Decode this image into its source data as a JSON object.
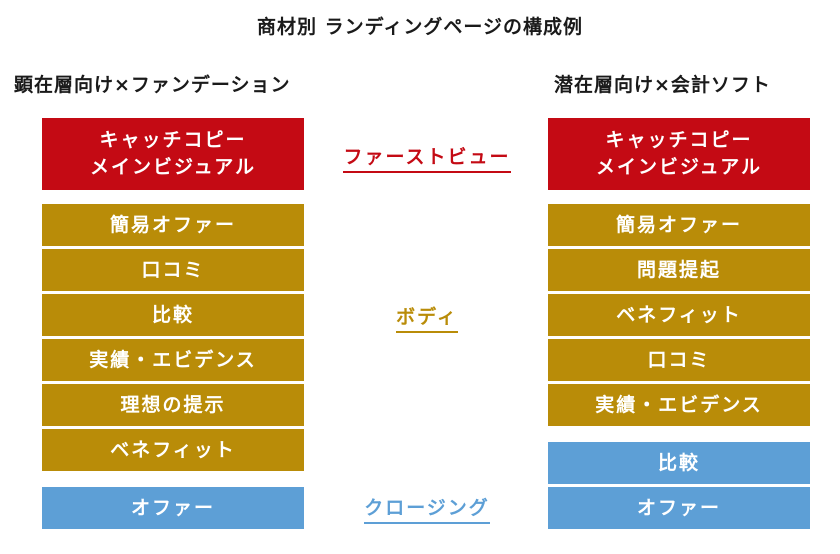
{
  "title": "商材別 ランディングページの構成例",
  "left": {
    "header": "顕在層向け×ファンデーション",
    "firstview": "キャッチコピー\nメインビジュアル",
    "body": [
      "簡易オファー",
      "口コミ",
      "比較",
      "実績・エビデンス",
      "理想の提示",
      "ベネフィット"
    ],
    "closing": [
      "オファー"
    ]
  },
  "right": {
    "header": "潜在層向け×会計ソフト",
    "firstview": "キャッチコピー\nメインビジュアル",
    "body": [
      "簡易オファー",
      "問題提起",
      "ベネフィット",
      "口コミ",
      "実績・エビデンス"
    ],
    "closing": [
      "比較",
      "オファー"
    ]
  },
  "sections": {
    "firstview": "ファーストビュー",
    "body": "ボディ",
    "closing": "クロージング"
  },
  "colors": {
    "firstview": "#c40a14",
    "body": "#b98c08",
    "closing": "#5d9fd6"
  }
}
